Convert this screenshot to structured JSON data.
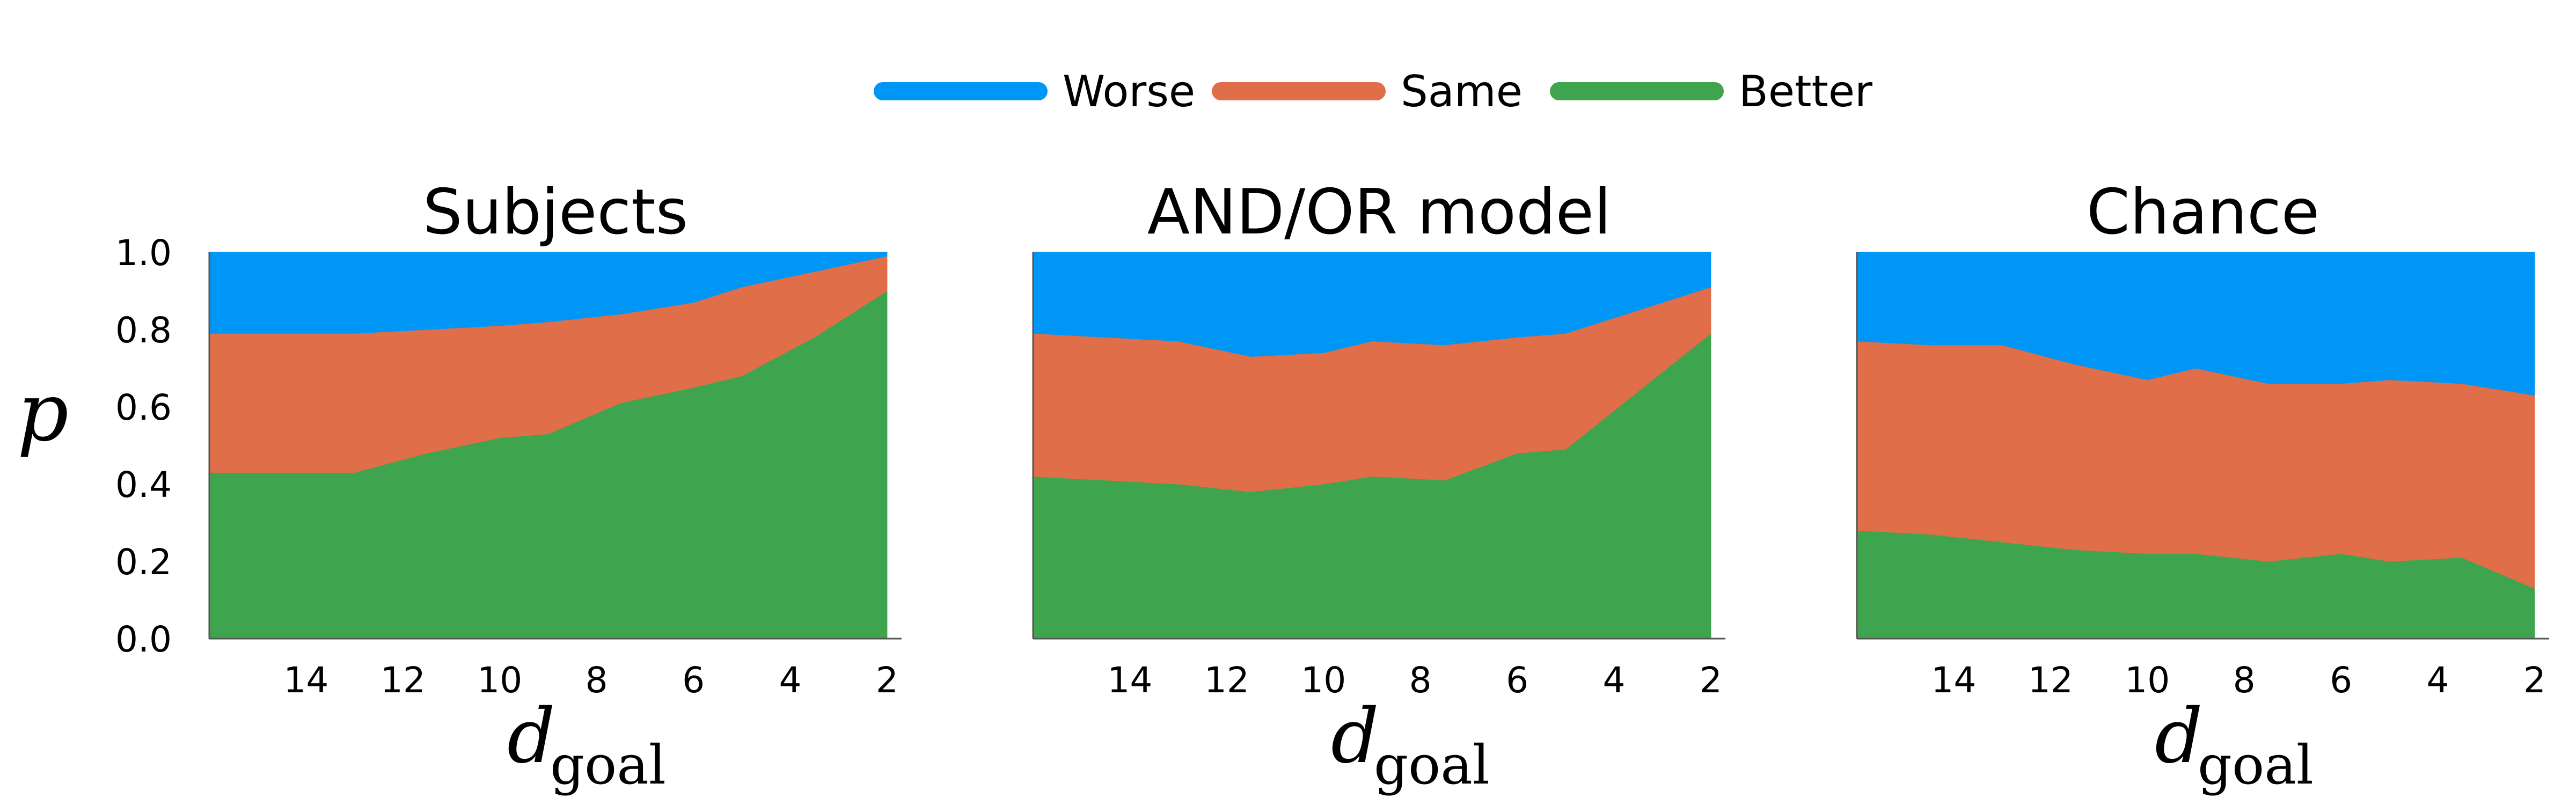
{
  "legend": {
    "entries": [
      {
        "label": "Worse",
        "color": "#0096f5"
      },
      {
        "label": "Same",
        "color": "#e06e48"
      },
      {
        "label": "Better",
        "color": "#3fa44e"
      }
    ]
  },
  "shared_axes": {
    "ylabel": "p",
    "xlabel_main": "d",
    "xlabel_sub": "goal"
  },
  "chart_data": [
    {
      "type": "area",
      "stacked": true,
      "title": "Subjects",
      "x": [
        16,
        14.5,
        13,
        11.5,
        10,
        9,
        7.5,
        6,
        5,
        3.5,
        2
      ],
      "xlim": [
        16,
        1.7
      ],
      "xticks": [
        14,
        12,
        10,
        8,
        6,
        4,
        2
      ],
      "ylim": [
        0,
        1
      ],
      "yticks": [
        "0.0",
        "0.2",
        "0.4",
        "0.6",
        "0.8",
        "1.0"
      ],
      "series": [
        {
          "name": "Better",
          "values": [
            0.43,
            0.43,
            0.43,
            0.48,
            0.52,
            0.53,
            0.61,
            0.65,
            0.68,
            0.78,
            0.9
          ]
        },
        {
          "name": "Same",
          "values": [
            0.36,
            0.36,
            0.36,
            0.32,
            0.29,
            0.29,
            0.23,
            0.22,
            0.23,
            0.17,
            0.09
          ]
        },
        {
          "name": "Worse",
          "values": [
            0.21,
            0.21,
            0.21,
            0.2,
            0.19,
            0.18,
            0.16,
            0.13,
            0.09,
            0.05,
            0.01
          ]
        }
      ]
    },
    {
      "type": "area",
      "stacked": true,
      "title": "AND/OR model",
      "x": [
        16,
        14.5,
        13,
        11.5,
        10,
        9,
        7.5,
        6,
        5,
        3.5,
        2
      ],
      "xlim": [
        16,
        1.7
      ],
      "xticks": [
        14,
        12,
        10,
        8,
        6,
        4,
        2
      ],
      "ylim": [
        0,
        1
      ],
      "yticks": [
        "0.0",
        "0.2",
        "0.4",
        "0.6",
        "0.8",
        "1.0"
      ],
      "series": [
        {
          "name": "Better",
          "values": [
            0.42,
            0.41,
            0.4,
            0.38,
            0.4,
            0.42,
            0.41,
            0.48,
            0.49,
            0.64,
            0.79
          ]
        },
        {
          "name": "Same",
          "values": [
            0.37,
            0.37,
            0.37,
            0.35,
            0.34,
            0.35,
            0.35,
            0.3,
            0.3,
            0.21,
            0.12
          ]
        },
        {
          "name": "Worse",
          "values": [
            0.21,
            0.22,
            0.23,
            0.27,
            0.26,
            0.23,
            0.24,
            0.22,
            0.21,
            0.15,
            0.09
          ]
        }
      ]
    },
    {
      "type": "area",
      "stacked": true,
      "title": "Chance",
      "x": [
        16,
        14.5,
        13,
        11.5,
        10,
        9,
        7.5,
        6,
        5,
        3.5,
        2
      ],
      "xlim": [
        16,
        1.7
      ],
      "xticks": [
        14,
        12,
        10,
        8,
        6,
        4,
        2
      ],
      "ylim": [
        0,
        1
      ],
      "yticks": [
        "0.0",
        "0.2",
        "0.4",
        "0.6",
        "0.8",
        "1.0"
      ],
      "series": [
        {
          "name": "Better",
          "values": [
            0.28,
            0.27,
            0.25,
            0.23,
            0.22,
            0.22,
            0.2,
            0.22,
            0.2,
            0.21,
            0.13
          ]
        },
        {
          "name": "Same",
          "values": [
            0.49,
            0.49,
            0.51,
            0.48,
            0.45,
            0.48,
            0.46,
            0.44,
            0.47,
            0.45,
            0.5
          ]
        },
        {
          "name": "Worse",
          "values": [
            0.23,
            0.24,
            0.24,
            0.29,
            0.33,
            0.3,
            0.34,
            0.34,
            0.33,
            0.34,
            0.37
          ]
        }
      ]
    }
  ]
}
